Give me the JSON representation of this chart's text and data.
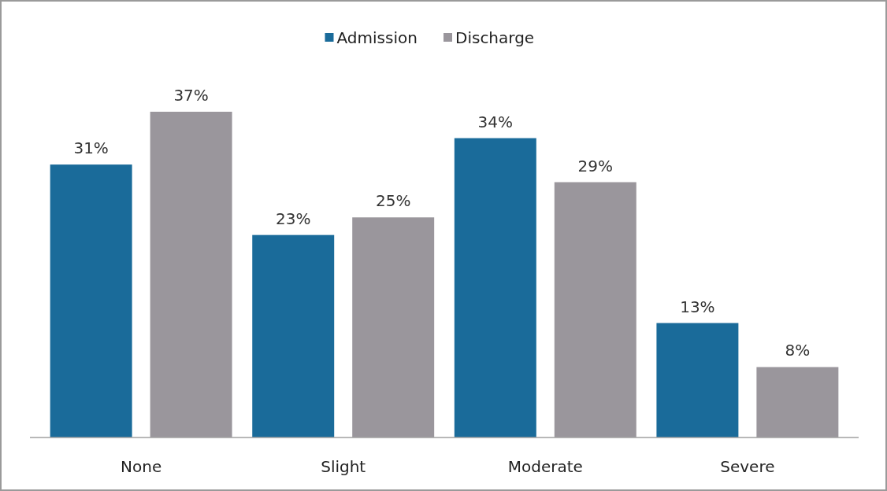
{
  "chart_data": {
    "type": "bar",
    "categories": [
      "None",
      "Slight",
      "Moderate",
      "Severe"
    ],
    "legend": "top",
    "series": [
      {
        "name": "Admission",
        "color": "#1a6b9a",
        "values": [
          31,
          23,
          34,
          13
        ],
        "value_labels": [
          "31%",
          "23%",
          "34%",
          "13%"
        ]
      },
      {
        "name": "Discharge",
        "color": "#9a969c",
        "values": [
          37,
          25,
          29,
          8
        ],
        "value_labels": [
          "37%",
          "25%",
          "29%",
          "8%"
        ]
      }
    ]
  }
}
